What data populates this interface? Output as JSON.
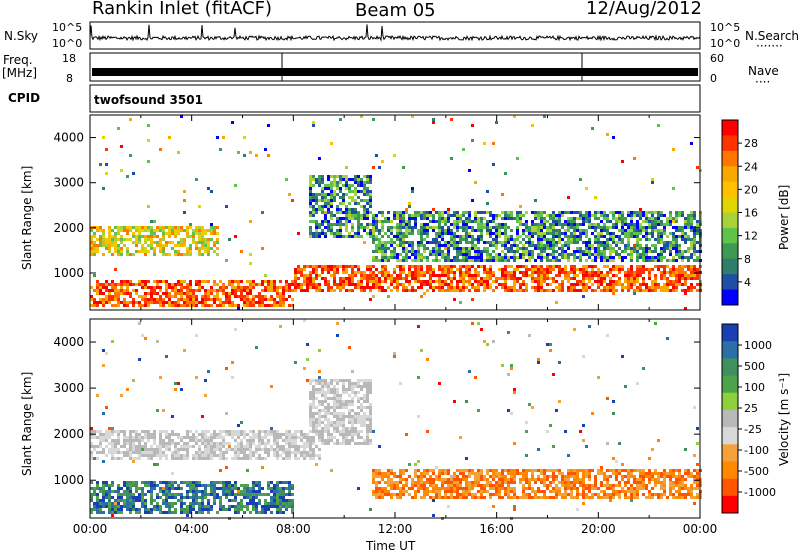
{
  "header": {
    "station": "Rankin Inlet (fitACF)",
    "beam": "Beam 05",
    "date": "12/Aug/2012"
  },
  "panels": {
    "nsky": {
      "label": "N.Sky",
      "ticks": [
        "10^5",
        "10^0"
      ],
      "right_ticks": [
        "10^5",
        "10^0"
      ],
      "right_label": "N.Search",
      "right_dots": "·······"
    },
    "freq": {
      "label_line1": "Freq.",
      "label_line2": "[MHz]",
      "ticks": [
        "18",
        "8"
      ],
      "right_ticks": [
        "60",
        "0"
      ],
      "right_label": "Nave",
      "right_dots": "····"
    },
    "cpid": {
      "label": "CPID",
      "value": "twofsound 3501"
    }
  },
  "chart_data": [
    {
      "type": "heatmap",
      "name": "power",
      "xlabel": "",
      "ylabel": "Slant Range [km]",
      "xlim": [
        0,
        24
      ],
      "ylim": [
        180,
        4500
      ],
      "yticks": [
        1000,
        2000,
        3000,
        4000
      ],
      "colorbar": {
        "label": "Power [dB]",
        "ticks": [
          "28",
          "24",
          "20",
          "16",
          "12",
          "8",
          "4"
        ],
        "colors": [
          "#ff0000",
          "#ff3300",
          "#ff7700",
          "#f7a900",
          "#ffc000",
          "#e2d400",
          "#a9d23a",
          "#5fc24b",
          "#3d9a55",
          "#2f7d6b",
          "#1f4fa3",
          "#0000ff"
        ]
      },
      "regions": [
        {
          "x": [
            0,
            8
          ],
          "y": [
            300,
            900
          ],
          "level": "high"
        },
        {
          "x": [
            8,
            24
          ],
          "y": [
            600,
            1200
          ],
          "level": "high"
        },
        {
          "x": [
            0,
            5
          ],
          "y": [
            1400,
            2100
          ],
          "level": "mid"
        },
        {
          "x": [
            8.5,
            11
          ],
          "y": [
            1800,
            3200
          ],
          "level": "low"
        },
        {
          "x": [
            11,
            24
          ],
          "y": [
            1300,
            2400
          ],
          "level": "low"
        }
      ]
    },
    {
      "type": "heatmap",
      "name": "velocity",
      "xlabel": "Time UT",
      "ylabel": "Slant Range [km]",
      "xlim": [
        0,
        24
      ],
      "ylim": [
        180,
        4500
      ],
      "yticks": [
        1000,
        2000,
        3000,
        4000
      ],
      "xtick_labels": [
        "00:00",
        "04:00",
        "08:00",
        "12:00",
        "16:00",
        "20:00",
        "00:00"
      ],
      "colorbar": {
        "label": "Velocity [m s⁻¹]",
        "ticks": [
          "1000",
          "500",
          "100",
          "25",
          "-25",
          "-100",
          "-500",
          "-1000"
        ],
        "colors": [
          "#1a3fb0",
          "#2a6fa8",
          "#3f8f5f",
          "#4ca34a",
          "#8ed03a",
          "#b9b9b9",
          "#d8d8d8",
          "#f3a23a",
          "#ff8800",
          "#ff5500",
          "#ff0000"
        ]
      },
      "regions": [
        {
          "x": [
            0,
            8
          ],
          "y": [
            300,
            1000
          ],
          "level": "positive"
        },
        {
          "x": [
            0,
            9
          ],
          "y": [
            1500,
            2100
          ],
          "level": "ground"
        },
        {
          "x": [
            8.5,
            11
          ],
          "y": [
            1800,
            3200
          ],
          "level": "ground"
        },
        {
          "x": [
            11,
            24
          ],
          "y": [
            600,
            1300
          ],
          "level": "negative"
        }
      ]
    }
  ]
}
